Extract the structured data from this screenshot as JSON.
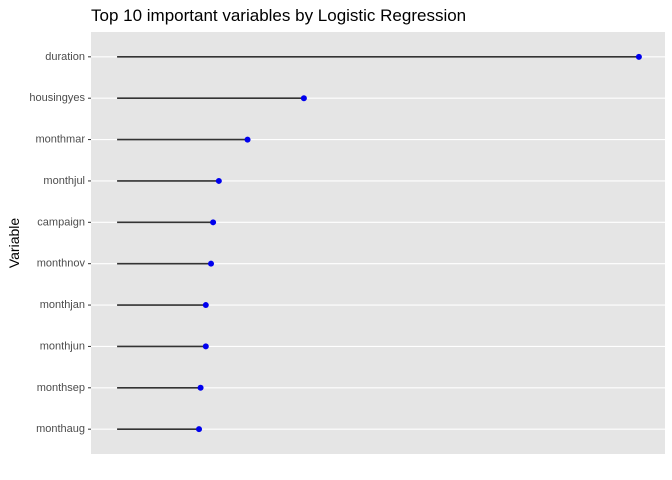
{
  "chart_data": {
    "type": "lollipop",
    "orientation": "horizontal",
    "title": "Top 10 important variables by Logistic Regression",
    "xlabel": "",
    "ylabel": "Variable",
    "categories": [
      "duration",
      "housingyes",
      "monthmar",
      "monthjul",
      "campaign",
      "monthnov",
      "monthjan",
      "monthjun",
      "monthsep",
      "monthaug"
    ],
    "values": [
      100,
      35.8,
      25.0,
      19.5,
      18.4,
      18.0,
      17.0,
      17.0,
      16.0,
      15.7
    ],
    "xlim": [
      -5,
      105
    ],
    "x_axis_ticks_shown": false,
    "grid": true,
    "colors": {
      "panel_background": "#e5e5e5",
      "grid_line": "#ffffff",
      "stem": "#333333",
      "point": "#0000ee",
      "tick_label": "#4d4d4d"
    }
  }
}
